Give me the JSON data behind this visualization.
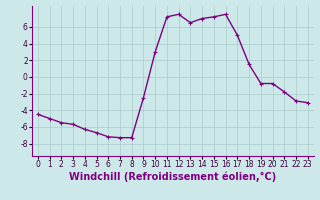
{
  "x": [
    0,
    1,
    2,
    3,
    4,
    5,
    6,
    7,
    8,
    9,
    10,
    11,
    12,
    13,
    14,
    15,
    16,
    17,
    18,
    19,
    20,
    21,
    22,
    23
  ],
  "y": [
    -4.5,
    -5.0,
    -5.5,
    -5.7,
    -6.3,
    -6.7,
    -7.2,
    -7.3,
    -7.3,
    -2.5,
    3.0,
    7.2,
    7.5,
    6.5,
    7.0,
    7.2,
    7.5,
    5.0,
    1.5,
    -0.8,
    -0.8,
    -1.8,
    -2.9,
    -3.1
  ],
  "line_color": "#800080",
  "marker": "+",
  "marker_size": 3,
  "background_color": "#cce8e8",
  "grid_color": "#aacccc",
  "xlabel": "Windchill (Refroidissement éolien,°C)",
  "ylim": [
    -9.5,
    8.5
  ],
  "xlim": [
    -0.5,
    23.5
  ],
  "yticks": [
    -8,
    -6,
    -4,
    -2,
    0,
    2,
    4,
    6
  ],
  "xticks": [
    0,
    1,
    2,
    3,
    4,
    5,
    6,
    7,
    8,
    9,
    10,
    11,
    12,
    13,
    14,
    15,
    16,
    17,
    18,
    19,
    20,
    21,
    22,
    23
  ],
  "tick_fontsize": 5.5,
  "xlabel_fontsize": 7.0,
  "line_width": 1.0,
  "marker_edge_width": 0.8
}
